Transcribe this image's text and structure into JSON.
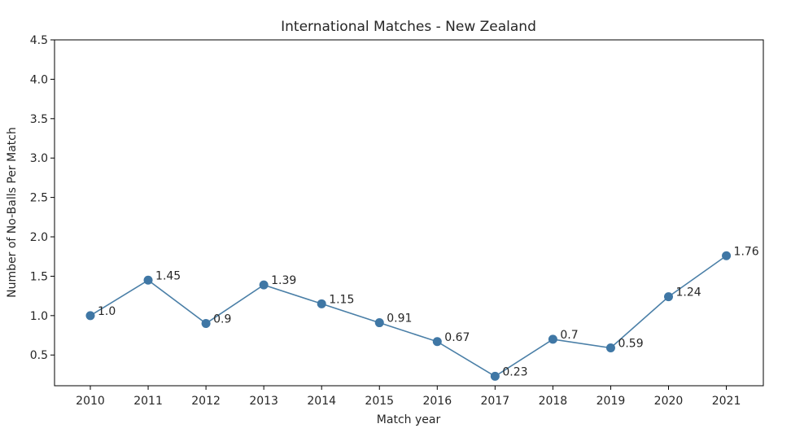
{
  "chart_data": {
    "type": "line",
    "title": "International Matches - New Zealand",
    "xlabel": "Match year",
    "ylabel": "Number of No-Balls Per Match",
    "x": [
      "2010",
      "2011",
      "2012",
      "2013",
      "2014",
      "2015",
      "2016",
      "2017",
      "2018",
      "2019",
      "2020",
      "2021"
    ],
    "values": [
      1.0,
      1.45,
      0.9,
      1.39,
      1.15,
      0.91,
      0.67,
      0.23,
      0.7,
      0.59,
      1.24,
      1.76
    ],
    "data_labels": [
      "1.0",
      "1.45",
      "0.9",
      "1.39",
      "1.15",
      "0.91",
      "0.67",
      "0.23",
      "0.7",
      "0.59",
      "1.24",
      "1.76"
    ],
    "yticks": [
      "0.5",
      "1.0",
      "1.5",
      "2.0",
      "2.5",
      "3.0",
      "3.5",
      "4.0",
      "4.5"
    ],
    "ylim": [
      0.11,
      4.5
    ],
    "grid": false,
    "line_color": "#4a7fa7",
    "marker_color": "#3f77a5"
  }
}
